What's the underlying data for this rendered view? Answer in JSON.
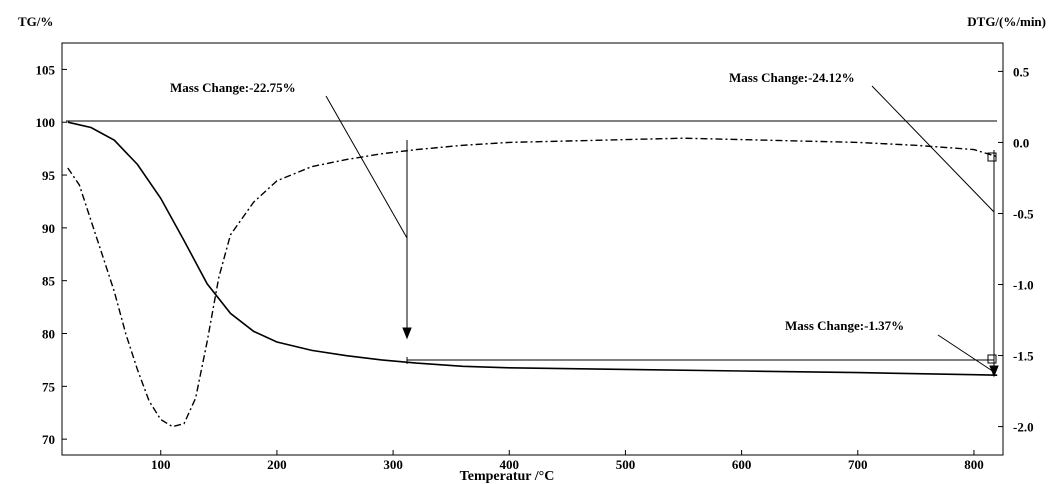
{
  "chart_data": {
    "type": "line",
    "left_axis_label": "TG/%",
    "right_axis_label": "DTG/(%/min)",
    "xlabel": "Temperatur /°C",
    "xlim": [
      15,
      825
    ],
    "ylim_left": [
      68.5,
      107.5
    ],
    "ylim_right": [
      -2.2,
      0.7
    ],
    "x_ticks": [
      "100",
      "200",
      "300",
      "400",
      "500",
      "600",
      "700",
      "800"
    ],
    "y_left_ticks": [
      "70",
      "75",
      "80",
      "85",
      "90",
      "95",
      "100",
      "105"
    ],
    "y_right_ticks": [
      "-2.0",
      "-1.5",
      "-1.0",
      "-0.5",
      "0.0",
      "0.5"
    ],
    "annotations": [
      {
        "text": "Mass Change:-22.75%"
      },
      {
        "text": "Mass Change:-24.12%"
      },
      {
        "text": "Mass Change:-1.37%"
      }
    ],
    "series": [
      {
        "axis": "left",
        "style": "solid",
        "x": [
          20,
          40,
          60,
          80,
          100,
          120,
          140,
          160,
          180,
          200,
          230,
          260,
          290,
          320,
          360,
          400,
          500,
          600,
          700,
          800,
          820
        ],
        "y": [
          100.0,
          99.5,
          98.3,
          96.0,
          92.8,
          88.8,
          84.7,
          81.9,
          80.2,
          79.2,
          78.4,
          77.9,
          77.5,
          77.2,
          76.9,
          76.75,
          76.6,
          76.45,
          76.3,
          76.1,
          76.05
        ]
      },
      {
        "axis": "right",
        "style": "dash-dot",
        "x": [
          20,
          30,
          40,
          50,
          60,
          70,
          80,
          90,
          100,
          110,
          120,
          130,
          140,
          150,
          160,
          180,
          200,
          230,
          260,
          290,
          320,
          360,
          400,
          450,
          500,
          550,
          600,
          650,
          700,
          750,
          800,
          820
        ],
        "y": [
          -0.18,
          -0.3,
          -0.55,
          -0.8,
          -1.05,
          -1.35,
          -1.6,
          -1.82,
          -1.95,
          -2.0,
          -1.98,
          -1.8,
          -1.4,
          -0.95,
          -0.65,
          -0.42,
          -0.27,
          -0.17,
          -0.12,
          -0.08,
          -0.05,
          -0.02,
          0.0,
          0.01,
          0.02,
          0.03,
          0.02,
          0.01,
          0.0,
          -0.02,
          -0.05,
          -0.1
        ]
      }
    ]
  }
}
